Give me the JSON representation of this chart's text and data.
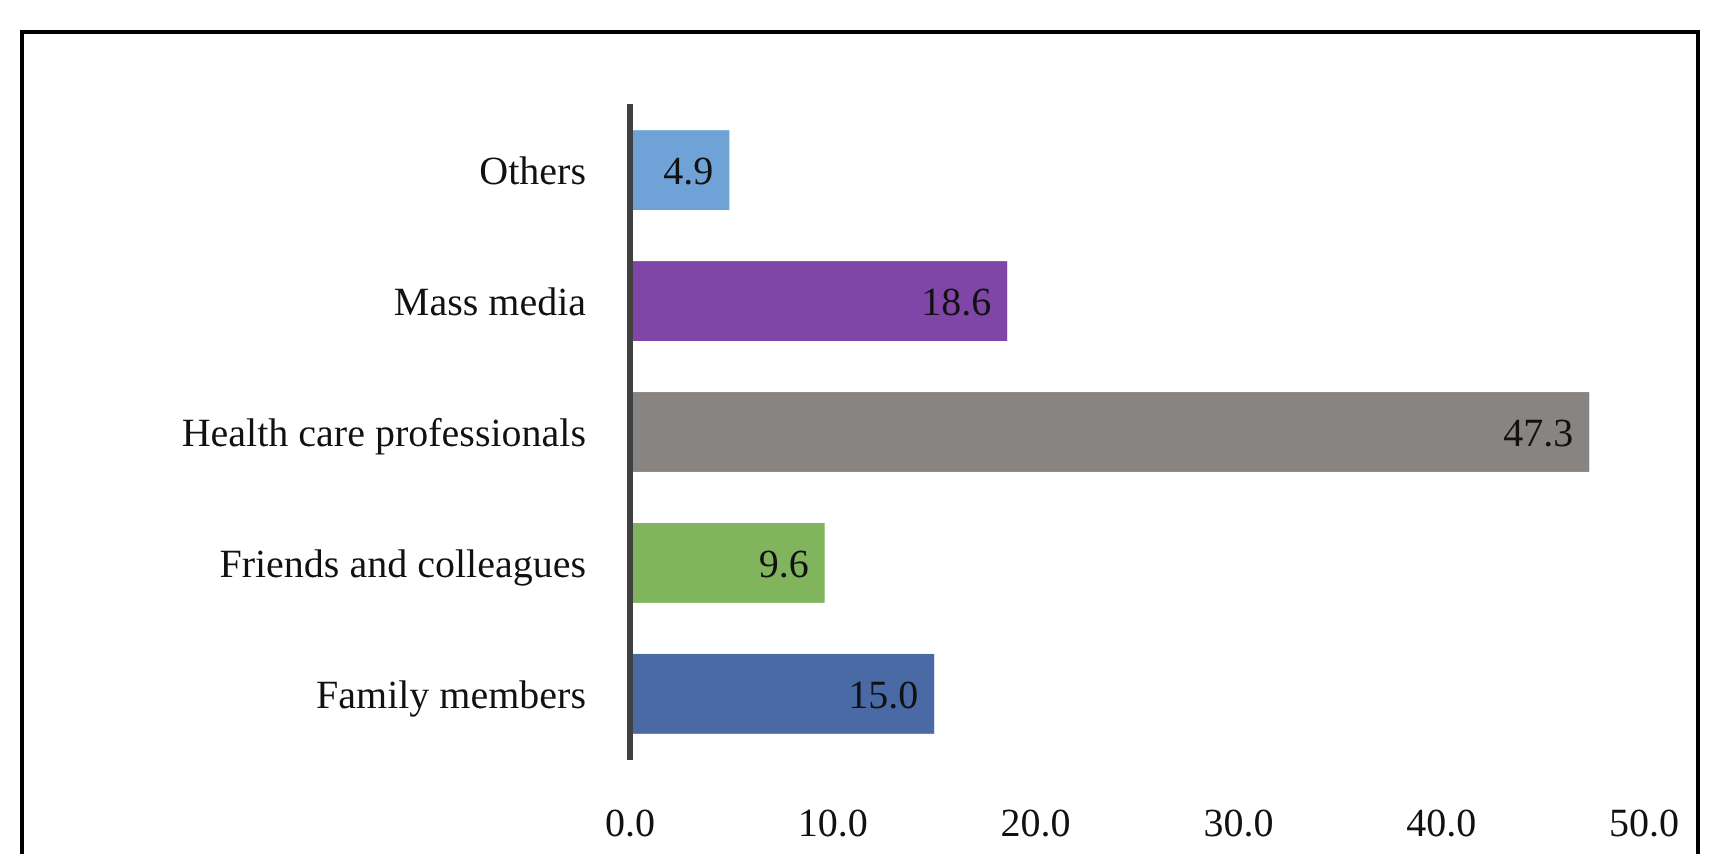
{
  "chart_data": {
    "type": "bar",
    "orientation": "horizontal",
    "categories": [
      "Others",
      "Mass media",
      "Health care professionals",
      "Friends and colleagues",
      "Family members"
    ],
    "values": [
      4.9,
      18.6,
      47.3,
      9.6,
      15.0
    ],
    "value_labels": [
      "4.9",
      "18.6",
      "47.3",
      "9.6",
      "15.0"
    ],
    "colors": [
      "#6fa3d8",
      "#7f46a8",
      "#878482",
      "#80b55e",
      "#4a6aa5"
    ],
    "xlim": [
      0,
      50
    ],
    "xticks": [
      {
        "value": 0,
        "label": "0.0"
      },
      {
        "value": 10,
        "label": "10.0"
      },
      {
        "value": 20,
        "label": "20.0"
      },
      {
        "value": 30,
        "label": "30.0"
      },
      {
        "value": 40,
        "label": "40.0"
      },
      {
        "value": 50,
        "label": "50.0"
      }
    ],
    "grid": false
  }
}
